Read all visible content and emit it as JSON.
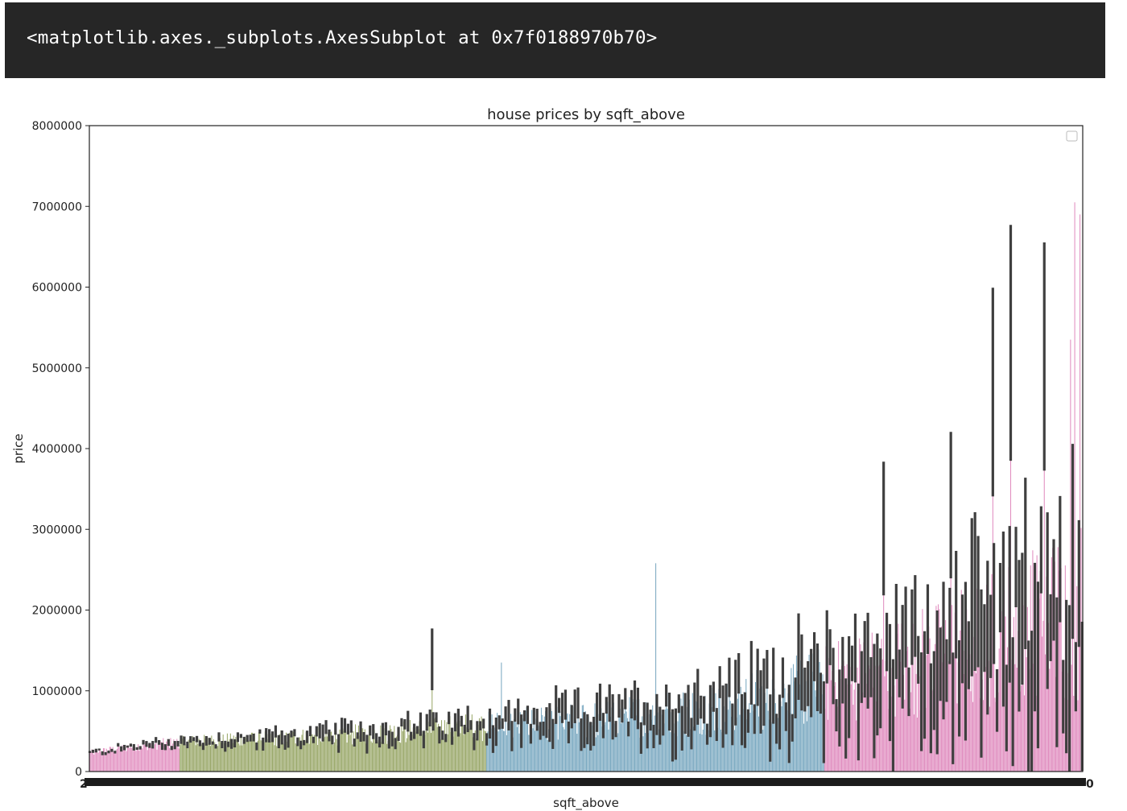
{
  "output": {
    "repr_text": "<matplotlib.axes._subplots.AxesSubplot at 0x7f0188970b70>"
  },
  "chart_data": {
    "type": "bar",
    "title": "house prices by sqft_above",
    "xlabel": "sqft_above",
    "ylabel": "price",
    "ylim": [
      0,
      8000000
    ],
    "yticks": [
      0,
      1000000,
      2000000,
      3000000,
      4000000,
      5000000,
      6000000,
      7000000,
      8000000
    ],
    "ytick_labels": [
      "0",
      "1000000",
      "2000000",
      "3000000",
      "4000000",
      "5000000",
      "6000000",
      "7000000",
      "8000000"
    ],
    "first_xtick_label": "2",
    "last_xtick_label": "0",
    "grid": false,
    "legend": "top-right (empty)",
    "category_count": 946,
    "color_segments": [
      {
        "color": "#e393c2",
        "from": 0.0,
        "to": 0.09
      },
      {
        "color": "#9aa86a",
        "from": 0.09,
        "to": 0.4
      },
      {
        "color": "#7ba9c1",
        "from": 0.4,
        "to": 0.74
      },
      {
        "color": "#e08dbf",
        "from": 0.74,
        "to": 1.0
      }
    ],
    "trend_points": [
      {
        "x": 0.0,
        "y": 230000
      },
      {
        "x": 0.05,
        "y": 320000
      },
      {
        "x": 0.1,
        "y": 370000
      },
      {
        "x": 0.15,
        "y": 390000
      },
      {
        "x": 0.2,
        "y": 420000
      },
      {
        "x": 0.25,
        "y": 445000
      },
      {
        "x": 0.3,
        "y": 480000
      },
      {
        "x": 0.35,
        "y": 520000
      },
      {
        "x": 0.4,
        "y": 560000
      },
      {
        "x": 0.45,
        "y": 600000
      },
      {
        "x": 0.5,
        "y": 630000
      },
      {
        "x": 0.55,
        "y": 680000
      },
      {
        "x": 0.6,
        "y": 740000
      },
      {
        "x": 0.65,
        "y": 850000
      },
      {
        "x": 0.7,
        "y": 950000
      },
      {
        "x": 0.75,
        "y": 1100000
      },
      {
        "x": 0.8,
        "y": 1250000
      },
      {
        "x": 0.85,
        "y": 1400000
      },
      {
        "x": 0.9,
        "y": 1600000
      },
      {
        "x": 0.95,
        "y": 1800000
      },
      {
        "x": 1.0,
        "y": 2000000
      }
    ],
    "notable_bars": [
      {
        "x": 0.345,
        "price": 1390000,
        "error_bar": true
      },
      {
        "x": 0.415,
        "price": 1350000
      },
      {
        "x": 0.57,
        "price": 2580000
      },
      {
        "x": 0.8,
        "price": 3010000,
        "error_bar": true
      },
      {
        "x": 0.868,
        "price": 3300000,
        "error_bar": true
      },
      {
        "x": 0.91,
        "price": 4700000,
        "error_bar": true
      },
      {
        "x": 0.928,
        "price": 5310000,
        "error_bar": true
      },
      {
        "x": 0.962,
        "price": 5140000,
        "error_bar": true
      },
      {
        "x": 0.988,
        "price": 5350000
      },
      {
        "x": 0.993,
        "price": 7050000
      },
      {
        "x": 0.998,
        "price": 6900000
      }
    ]
  }
}
